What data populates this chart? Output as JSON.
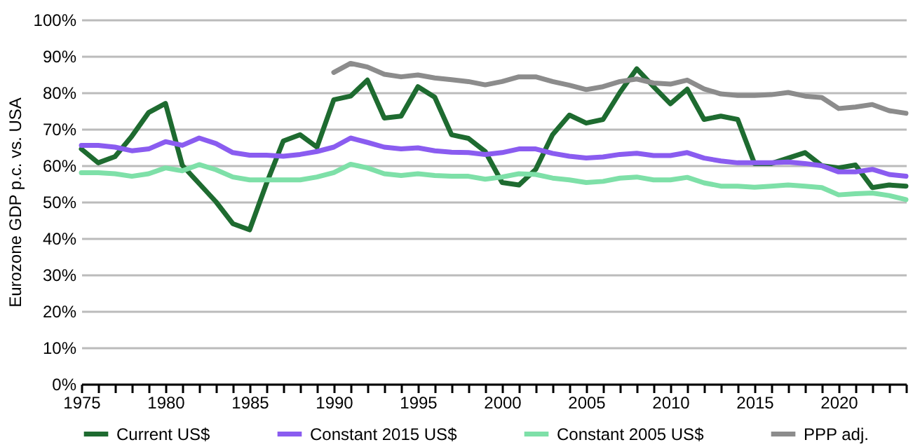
{
  "chart_data": {
    "type": "line",
    "ylabel": "Eurozone GDP p.c. vs. USA",
    "x": [
      1975,
      1976,
      1977,
      1978,
      1979,
      1980,
      1981,
      1982,
      1983,
      1984,
      1985,
      1986,
      1987,
      1988,
      1989,
      1990,
      1991,
      1992,
      1993,
      1994,
      1995,
      1996,
      1997,
      1998,
      1999,
      2000,
      2001,
      2002,
      2003,
      2004,
      2005,
      2006,
      2007,
      2008,
      2009,
      2010,
      2011,
      2012,
      2013,
      2014,
      2015,
      2016,
      2017,
      2018,
      2019,
      2020,
      2021,
      2022,
      2023,
      2024
    ],
    "series": [
      {
        "name": "Current US$",
        "color": "#1e6b30",
        "values": [
          64.5,
          60.7,
          62.4,
          68,
          74.5,
          77,
          60,
          55,
          50,
          44,
          42.3,
          55,
          66.7,
          68.4,
          65,
          78,
          79,
          83.4,
          73,
          73.5,
          81.6,
          78.7,
          68.4,
          67.4,
          63.8,
          55.3,
          54.6,
          58.9,
          68.4,
          73.8,
          71.6,
          72.6,
          80,
          86.5,
          81.6,
          76.9,
          80.9,
          72.6,
          73.5,
          72.6,
          60.5,
          60.5,
          62,
          63.5,
          59.9,
          59.3,
          60.1,
          53.9,
          54.6,
          54.3
        ]
      },
      {
        "name": "Constant 2015 US$",
        "color": "#8a5cf0",
        "values": [
          65.5,
          65.5,
          65,
          64,
          64.5,
          66.5,
          65.5,
          67.5,
          66,
          63.5,
          62.8,
          62.8,
          62.5,
          63,
          63.8,
          65,
          67.5,
          66.3,
          65,
          64.5,
          64.8,
          64,
          63.6,
          63.5,
          63,
          63.5,
          64.5,
          64.5,
          63.3,
          62.5,
          62,
          62.3,
          63,
          63.3,
          62.7,
          62.7,
          63.5,
          62,
          61.2,
          60.7,
          60.7,
          60.7,
          60.9,
          60.5,
          59.9,
          58.2,
          58.2,
          58.9,
          57.5,
          57
        ]
      },
      {
        "name": "Constant 2005 US$",
        "color": "#7ee0a8",
        "values": [
          58,
          58,
          57.7,
          57,
          57.7,
          59.3,
          58.5,
          60.2,
          58.8,
          56.8,
          56,
          56,
          56,
          56,
          56.8,
          58,
          60.3,
          59.3,
          57.7,
          57.2,
          57.7,
          57.2,
          57,
          57,
          56.2,
          56.8,
          57.7,
          57.5,
          56.5,
          56,
          55.3,
          55.6,
          56.5,
          56.8,
          56,
          56,
          56.7,
          55.2,
          54.3,
          54.3,
          54,
          54.3,
          54.6,
          54.3,
          53.9,
          51.9,
          52.2,
          52.4,
          51.7,
          50.6
        ]
      },
      {
        "name": "PPP adj.",
        "color": "#8c8c8c",
        "values": [
          null,
          null,
          null,
          null,
          null,
          null,
          null,
          null,
          null,
          null,
          null,
          null,
          null,
          null,
          null,
          85.5,
          88,
          87,
          85,
          84.3,
          84.8,
          84,
          83.5,
          83,
          82.1,
          83,
          84.3,
          84.3,
          83,
          82,
          80.8,
          81.6,
          83,
          83.7,
          82.6,
          82.3,
          83.4,
          81,
          79.6,
          79.2,
          79.2,
          79.4,
          80,
          79,
          78.6,
          75.6,
          76,
          76.7,
          75,
          74.3
        ]
      }
    ],
    "xlim": [
      1975,
      2024
    ],
    "xticks": [
      1975,
      {
        "value": 1976,
        "label": null
      },
      {
        "value": 1977,
        "label": null
      },
      {
        "value": 1978,
        "label": null
      },
      {
        "value": 1979,
        "label": null
      },
      1980,
      {
        "value": 1981,
        "label": null
      },
      {
        "value": 1982,
        "label": null
      },
      {
        "value": 1983,
        "label": null
      },
      {
        "value": 1984,
        "label": null
      },
      1985,
      {
        "value": 1986,
        "label": null
      },
      {
        "value": 1987,
        "label": null
      },
      {
        "value": 1988,
        "label": null
      },
      {
        "value": 1989,
        "label": null
      },
      1990,
      {
        "value": 1991,
        "label": null
      },
      {
        "value": 1992,
        "label": null
      },
      {
        "value": 1993,
        "label": null
      },
      {
        "value": 1994,
        "label": null
      },
      1995,
      {
        "value": 1996,
        "label": null
      },
      {
        "value": 1997,
        "label": null
      },
      {
        "value": 1998,
        "label": null
      },
      {
        "value": 1999,
        "label": null
      },
      2000,
      {
        "value": 2001,
        "label": null
      },
      {
        "value": 2002,
        "label": null
      },
      {
        "value": 2003,
        "label": null
      },
      {
        "value": 2004,
        "label": null
      },
      2005,
      {
        "value": 2006,
        "label": null
      },
      {
        "value": 2007,
        "label": null
      },
      {
        "value": 2008,
        "label": null
      },
      {
        "value": 2009,
        "label": null
      },
      2010,
      {
        "value": 2011,
        "label": null
      },
      {
        "value": 2012,
        "label": null
      },
      {
        "value": 2013,
        "label": null
      },
      {
        "value": 2014,
        "label": null
      },
      2015,
      {
        "value": 2016,
        "label": null
      },
      {
        "value": 2017,
        "label": null
      },
      {
        "value": 2018,
        "label": null
      },
      {
        "value": 2019,
        "label": null
      },
      2020,
      {
        "value": 2021,
        "label": null
      },
      {
        "value": 2022,
        "label": null
      },
      {
        "value": 2023,
        "label": null
      },
      {
        "value": 2024,
        "label": null
      }
    ],
    "ylim": [
      0,
      100
    ],
    "yticks": [
      {
        "value": 0,
        "label": "0%"
      },
      {
        "value": 10,
        "label": "10%"
      },
      {
        "value": 20,
        "label": "20%"
      },
      {
        "value": 30,
        "label": "30%"
      },
      {
        "value": 40,
        "label": "40%"
      },
      {
        "value": 50,
        "label": "50%"
      },
      {
        "value": 60,
        "label": "60%"
      },
      {
        "value": 70,
        "label": "70%"
      },
      {
        "value": 80,
        "label": "80%"
      },
      {
        "value": 90,
        "label": "90%"
      },
      {
        "value": 100,
        "label": "100%"
      }
    ],
    "grid": "y",
    "legend": "bottom",
    "marker": "none",
    "line_style": "solid"
  }
}
